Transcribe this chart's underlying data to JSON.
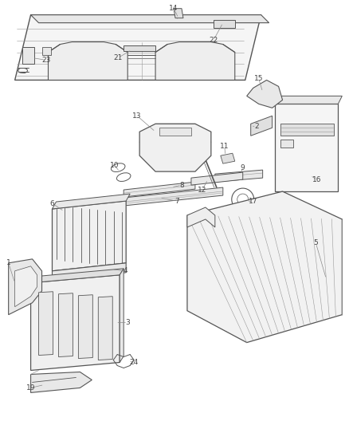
{
  "bg_color": "#ffffff",
  "lc": "#555555",
  "lc_light": "#999999",
  "tc": "#444444",
  "fig_width": 4.38,
  "fig_height": 5.33,
  "dpi": 100
}
